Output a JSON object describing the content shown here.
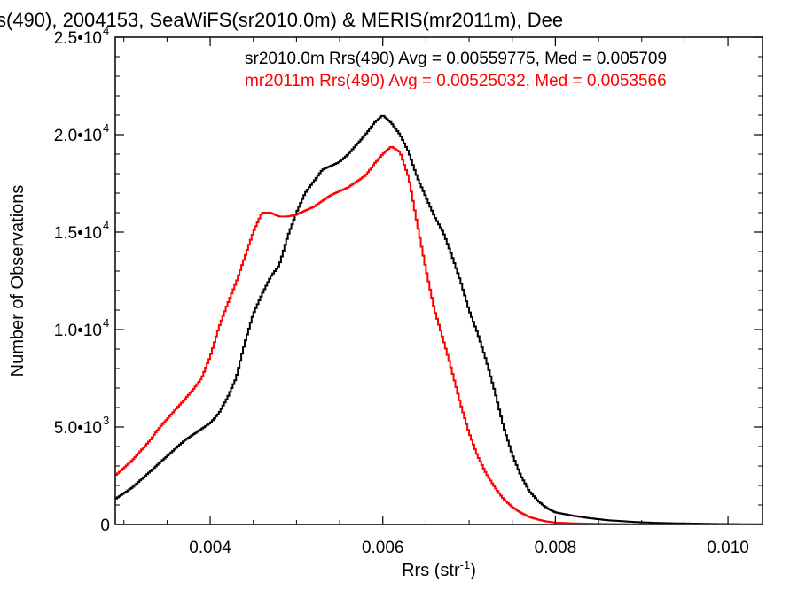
{
  "chart_data": {
    "type": "line",
    "title": "s(490), 2004153, SeaWiFS(sr2010.0m) & MERIS(mr2011m), Dee",
    "xlabel": "Rrs (str",
    "xlabel_sup": "-1",
    "xlabel_end": ")",
    "ylabel": "Number of Observations",
    "xlim": [
      0.0029,
      0.0104
    ],
    "ylim": [
      0,
      25000
    ],
    "x_ticks": [
      {
        "value": 0.004,
        "label": "0.004"
      },
      {
        "value": 0.006,
        "label": "0.006"
      },
      {
        "value": 0.008,
        "label": "0.008"
      },
      {
        "value": 0.01,
        "label": "0.010"
      }
    ],
    "y_ticks": [
      {
        "value": 0,
        "label": "0",
        "exp": ""
      },
      {
        "value": 5000,
        "label": "5.0•10",
        "exp": "3"
      },
      {
        "value": 10000,
        "label": "1.0•10",
        "exp": "4"
      },
      {
        "value": 15000,
        "label": "1.5•10",
        "exp": "4"
      },
      {
        "value": 20000,
        "label": "2.0•10",
        "exp": "4"
      },
      {
        "value": 25000,
        "label": "2.5•10",
        "exp": "4"
      }
    ],
    "grid": false,
    "legend_position": "top-right",
    "series": [
      {
        "name": "sr2010.0m Rrs(490) Avg = 0.00559775, Med = 0.005709",
        "color": "#000000",
        "x": [
          0.0029,
          0.003,
          0.0031,
          0.0032,
          0.0033,
          0.0034,
          0.0035,
          0.0036,
          0.0037,
          0.0038,
          0.0039,
          0.004,
          0.0041,
          0.0042,
          0.0043,
          0.0044,
          0.0045,
          0.0046,
          0.0047,
          0.0048,
          0.0049,
          0.005,
          0.0051,
          0.0052,
          0.0053,
          0.0054,
          0.0055,
          0.0056,
          0.0057,
          0.0058,
          0.0059,
          0.006,
          0.0061,
          0.0062,
          0.0063,
          0.0064,
          0.0065,
          0.0066,
          0.0067,
          0.0068,
          0.0069,
          0.007,
          0.0071,
          0.0072,
          0.0073,
          0.0074,
          0.0075,
          0.0076,
          0.0077,
          0.0078,
          0.0079,
          0.008,
          0.0082,
          0.0084,
          0.0086,
          0.0088,
          0.009,
          0.0092,
          0.0094,
          0.0096,
          0.0098,
          0.01,
          0.0102,
          0.0104
        ],
        "values": [
          1300,
          1600,
          1900,
          2300,
          2700,
          3100,
          3500,
          3900,
          4300,
          4600,
          4900,
          5200,
          5700,
          6500,
          7500,
          9300,
          10800,
          11800,
          12700,
          13300,
          14800,
          16000,
          17000,
          17600,
          18200,
          18400,
          18600,
          19000,
          19500,
          20000,
          20600,
          21000,
          20600,
          20000,
          19100,
          17800,
          16800,
          15800,
          15000,
          13800,
          12500,
          11000,
          9800,
          8400,
          6800,
          5000,
          3600,
          2500,
          1700,
          1200,
          850,
          620,
          450,
          320,
          220,
          160,
          110,
          80,
          60,
          45,
          30,
          20,
          12,
          8
        ]
      },
      {
        "name": "mr2011m Rrs(490) Avg = 0.00525032, Med = 0.0053566",
        "color": "#ff0000",
        "x": [
          0.0029,
          0.003,
          0.0031,
          0.0032,
          0.0033,
          0.0034,
          0.0035,
          0.0036,
          0.0037,
          0.0038,
          0.0039,
          0.004,
          0.0041,
          0.0042,
          0.0043,
          0.0044,
          0.0045,
          0.0046,
          0.0047,
          0.0048,
          0.0049,
          0.005,
          0.0051,
          0.0052,
          0.0053,
          0.0054,
          0.0055,
          0.0056,
          0.0057,
          0.0058,
          0.0059,
          0.006,
          0.0061,
          0.0062,
          0.0063,
          0.0064,
          0.0065,
          0.0066,
          0.0067,
          0.0068,
          0.0069,
          0.007,
          0.0071,
          0.0072,
          0.0073,
          0.0074,
          0.0075,
          0.0076,
          0.0077,
          0.0078,
          0.0079,
          0.008,
          0.0082,
          0.0084,
          0.0086,
          0.0088,
          0.009,
          0.0092,
          0.0094,
          0.0096,
          0.0098,
          0.01,
          0.0102,
          0.0104
        ],
        "values": [
          2500,
          2900,
          3300,
          3800,
          4300,
          4900,
          5400,
          5900,
          6400,
          6900,
          7500,
          8600,
          10100,
          11300,
          12400,
          13700,
          15000,
          16000,
          16000,
          15800,
          15800,
          15900,
          16100,
          16300,
          16600,
          16900,
          17100,
          17300,
          17600,
          17900,
          18500,
          19000,
          19400,
          19100,
          17800,
          15400,
          13100,
          11000,
          9500,
          7900,
          6200,
          4700,
          3500,
          2600,
          1900,
          1300,
          900,
          600,
          380,
          250,
          150,
          100,
          60,
          40,
          25,
          15,
          10,
          6,
          4,
          3,
          2,
          1,
          1,
          1
        ]
      }
    ]
  }
}
